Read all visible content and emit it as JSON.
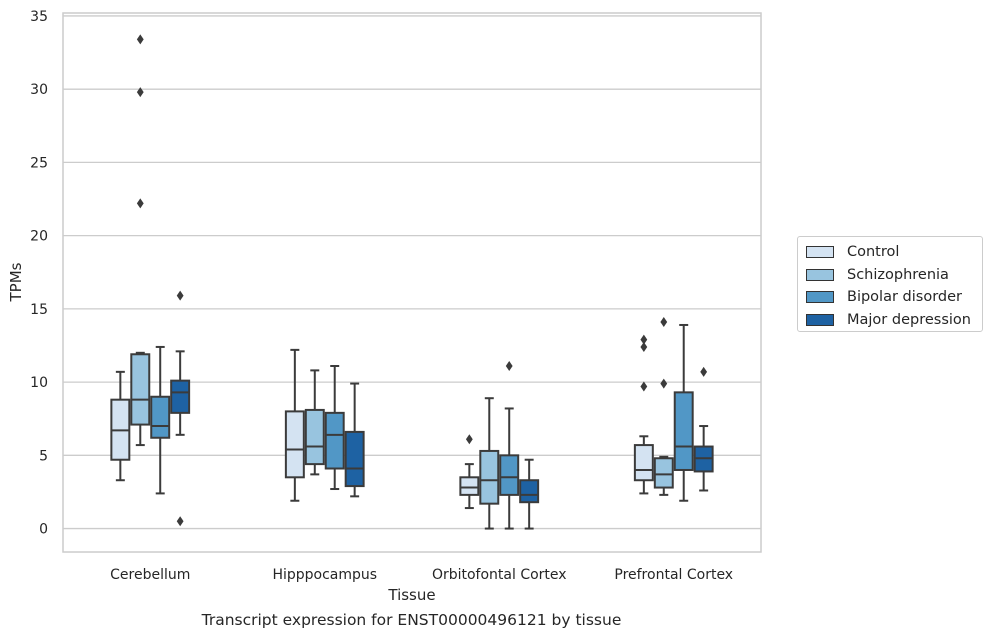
{
  "chart_data": {
    "type": "box",
    "xlabel": "Tissue",
    "ylabel": "TPMs",
    "caption": "Transcript expression for ENST00000496121 by tissue",
    "ylim": [
      -1.6,
      35.2
    ],
    "yticks": [
      0,
      5,
      10,
      15,
      20,
      25,
      30,
      35
    ],
    "grid": "horizontal",
    "legend_position": "right",
    "categories": [
      "Cerebellum",
      "Hipppocampus",
      "Orbitofontal Cortex",
      "Prefrontal Cortex"
    ],
    "series": [
      {
        "name": "Control",
        "color": "#d4e3f2",
        "boxes": [
          {
            "whislo": 3.3,
            "q1": 4.7,
            "med": 6.7,
            "q3": 8.8,
            "whishi": 10.7,
            "fliers": []
          },
          {
            "whislo": 1.9,
            "q1": 3.5,
            "med": 5.4,
            "q3": 8.0,
            "whishi": 12.2,
            "fliers": []
          },
          {
            "whislo": 1.4,
            "q1": 2.3,
            "med": 2.8,
            "q3": 3.5,
            "whishi": 4.4,
            "fliers": [
              6.1
            ]
          },
          {
            "whislo": 2.4,
            "q1": 3.3,
            "med": 4.0,
            "q3": 5.7,
            "whishi": 6.3,
            "fliers": [
              9.7,
              12.4,
              12.9
            ]
          }
        ]
      },
      {
        "name": "Schizophrenia",
        "color": "#98c4df",
        "boxes": [
          {
            "whislo": 5.7,
            "q1": 7.1,
            "med": 8.8,
            "q3": 11.9,
            "whishi": 12.0,
            "fliers": [
              22.2,
              29.8,
              33.4
            ]
          },
          {
            "whislo": 3.7,
            "q1": 4.4,
            "med": 5.6,
            "q3": 8.1,
            "whishi": 10.8,
            "fliers": []
          },
          {
            "whislo": 0.0,
            "q1": 1.7,
            "med": 3.3,
            "q3": 5.3,
            "whishi": 8.9,
            "fliers": []
          },
          {
            "whislo": 2.3,
            "q1": 2.8,
            "med": 3.7,
            "q3": 4.8,
            "whishi": 4.9,
            "fliers": [
              9.9,
              14.1
            ]
          }
        ]
      },
      {
        "name": "Bipolar disorder",
        "color": "#5197c6",
        "boxes": [
          {
            "whislo": 2.4,
            "q1": 6.2,
            "med": 7.0,
            "q3": 9.0,
            "whishi": 12.4,
            "fliers": []
          },
          {
            "whislo": 2.7,
            "q1": 4.1,
            "med": 6.4,
            "q3": 7.9,
            "whishi": 11.1,
            "fliers": []
          },
          {
            "whislo": 0.0,
            "q1": 2.3,
            "med": 3.5,
            "q3": 5.0,
            "whishi": 8.2,
            "fliers": [
              11.1
            ]
          },
          {
            "whislo": 1.9,
            "q1": 4.0,
            "med": 5.6,
            "q3": 9.3,
            "whishi": 13.9,
            "fliers": []
          }
        ]
      },
      {
        "name": "Major depression",
        "color": "#1e62a3",
        "boxes": [
          {
            "whislo": 6.4,
            "q1": 7.9,
            "med": 9.3,
            "q3": 10.1,
            "whishi": 12.1,
            "fliers": [
              0.5,
              15.9
            ]
          },
          {
            "whislo": 2.2,
            "q1": 2.9,
            "med": 4.1,
            "q3": 6.6,
            "whishi": 9.9,
            "fliers": []
          },
          {
            "whislo": 0.0,
            "q1": 1.8,
            "med": 2.3,
            "q3": 3.3,
            "whishi": 4.7,
            "fliers": []
          },
          {
            "whislo": 2.6,
            "q1": 3.9,
            "med": 4.8,
            "q3": 5.6,
            "whishi": 7.0,
            "fliers": [
              10.7
            ]
          }
        ]
      }
    ]
  }
}
